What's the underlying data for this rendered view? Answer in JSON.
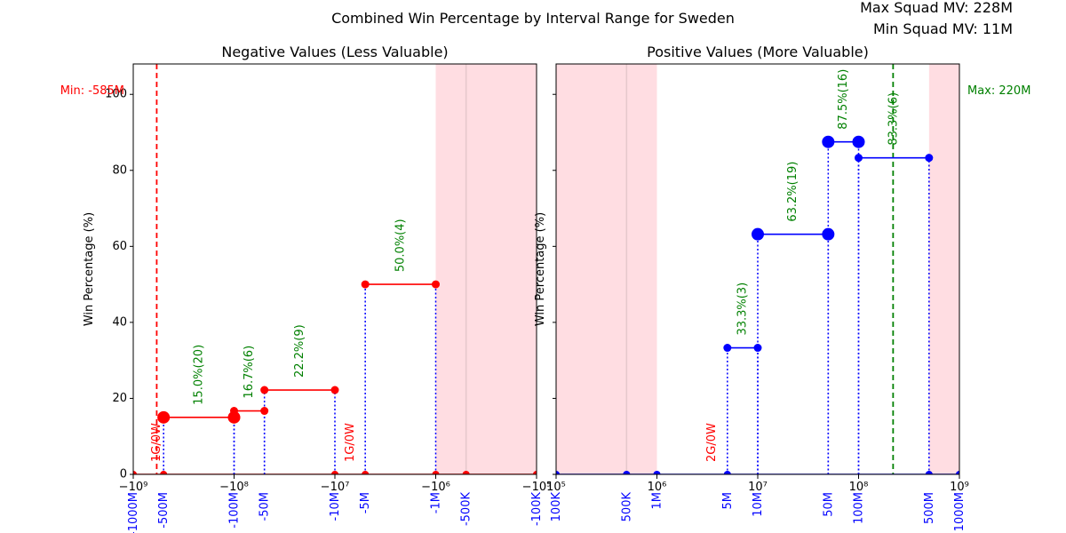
{
  "figure": {
    "title": "Combined Win Percentage by Interval Range for Sweden",
    "max_squad_mv": "Max Squad MV: 228M",
    "min_squad_mv": "Min Squad MV: 11M",
    "colors": {
      "neg": "#ff0000",
      "pos": "#0000ff",
      "band": "#ffdde2",
      "label_green": "#008000",
      "label_red": "#ff0000",
      "tick_blue": "#0000ff"
    }
  },
  "chart_data": [
    {
      "type": "line",
      "title": "Negative Values (Less Valuable)",
      "ylabel": "Win Percentage (%)",
      "xscale": "symlog",
      "xlim": [
        -1000000000,
        -100000
      ],
      "ylim": [
        0,
        108
      ],
      "yticks": [
        0,
        20,
        40,
        60,
        80,
        100
      ],
      "major_ticks": [
        {
          "x": -1000000000,
          "label": "−10⁹"
        },
        {
          "x": -100000000,
          "label": "−10⁸"
        },
        {
          "x": -10000000,
          "label": "−10⁷"
        },
        {
          "x": -1000000,
          "label": "−10⁶"
        },
        {
          "x": -100000,
          "label": "−10⁵"
        }
      ],
      "interval_ticks": [
        {
          "x": -1000000000,
          "label": "-1000M"
        },
        {
          "x": -500000000,
          "label": "-500M"
        },
        {
          "x": -100000000,
          "label": "-100M"
        },
        {
          "x": -50000000,
          "label": "-50M"
        },
        {
          "x": -10000000,
          "label": "-10M"
        },
        {
          "x": -5000000,
          "label": "-5M"
        },
        {
          "x": -1000000,
          "label": "-1M"
        },
        {
          "x": -500000,
          "label": "-500K"
        },
        {
          "x": -100000,
          "label": "-100K"
        }
      ],
      "bands": [
        [
          -1000000,
          -100000
        ]
      ],
      "vline": {
        "x": -585000000,
        "label": "Min: -585M"
      },
      "segments": [
        {
          "x0": -500000000,
          "x1": -100000000,
          "y": 15.0,
          "big": true,
          "label": "15.0%(20)"
        },
        {
          "x0": -100000000,
          "x1": -50000000,
          "y": 16.7,
          "big": false,
          "label": "16.7%(6)"
        },
        {
          "x0": -50000000,
          "x1": -10000000,
          "y": 22.2,
          "big": false,
          "label": "22.2%(9)"
        },
        {
          "x0": -5000000,
          "x1": -1000000,
          "y": 50.0,
          "big": false,
          "label": "50.0%(4)"
        }
      ],
      "zero_points": [
        -1000000000,
        -500000000,
        -10000000,
        -5000000,
        -1000000,
        -500000,
        -100000
      ],
      "zero_notes": [
        {
          "x": -585000000,
          "label": "1G/0W"
        },
        {
          "x": -7000000,
          "label": "1G/0W"
        }
      ]
    },
    {
      "type": "line",
      "title": "Positive Values (More Valuable)",
      "ylabel": "Win Percentage (%)",
      "xscale": "symlog",
      "xlim": [
        100000,
        1000000000
      ],
      "ylim": [
        0,
        108
      ],
      "yticks": [
        0,
        20,
        40,
        60,
        80,
        100
      ],
      "major_ticks": [
        {
          "x": 100000,
          "label": "10⁵"
        },
        {
          "x": 1000000,
          "label": "10⁶"
        },
        {
          "x": 10000000,
          "label": "10⁷"
        },
        {
          "x": 100000000,
          "label": "10⁸"
        },
        {
          "x": 1000000000,
          "label": "10⁹"
        }
      ],
      "interval_ticks": [
        {
          "x": 100000,
          "label": "100K"
        },
        {
          "x": 500000,
          "label": "500K"
        },
        {
          "x": 1000000,
          "label": "1M"
        },
        {
          "x": 5000000,
          "label": "5M"
        },
        {
          "x": 10000000,
          "label": "10M"
        },
        {
          "x": 50000000,
          "label": "50M"
        },
        {
          "x": 100000000,
          "label": "100M"
        },
        {
          "x": 500000000,
          "label": "500M"
        },
        {
          "x": 1000000000,
          "label": "1000M"
        }
      ],
      "bands": [
        [
          100000,
          1000000
        ],
        [
          500000000,
          1000000000
        ]
      ],
      "vline": {
        "x": 220000000,
        "label": "Max: 220M"
      },
      "segments": [
        {
          "x0": 5000000,
          "x1": 10000000,
          "y": 33.3,
          "big": false,
          "label": "33.3%(3)"
        },
        {
          "x0": 10000000,
          "x1": 50000000,
          "y": 63.2,
          "big": true,
          "label": "63.2%(19)"
        },
        {
          "x0": 50000000,
          "x1": 100000000,
          "y": 87.5,
          "big": true,
          "label": "87.5%(16)"
        },
        {
          "x0": 100000000,
          "x1": 500000000,
          "y": 83.3,
          "big": false,
          "label": "83.3%(6)"
        }
      ],
      "zero_points": [
        100000,
        500000,
        1000000,
        5000000,
        500000000,
        1000000000
      ],
      "zero_notes": [
        {
          "x": 3500000,
          "label": "2G/0W"
        }
      ]
    }
  ]
}
